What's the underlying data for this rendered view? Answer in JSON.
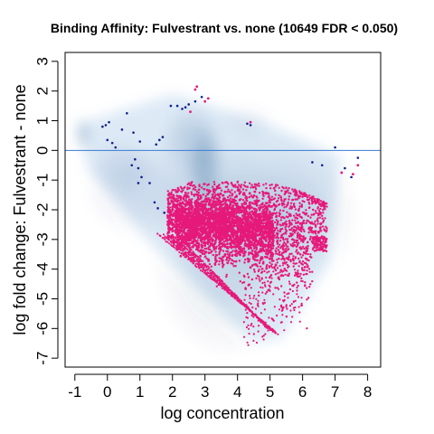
{
  "chart_data": {
    "type": "scatter",
    "title": "Binding Affinity: Fulvestrant vs. none (10649 FDR < 0.050)",
    "xlabel": "log concentration",
    "ylabel": "log fold change: Fulvestrant - none",
    "xlim": [
      -1.3,
      8.4
    ],
    "ylim": [
      -7.3,
      3.3
    ],
    "x_ticks": [
      -1,
      0,
      1,
      2,
      3,
      4,
      5,
      6,
      7,
      8
    ],
    "y_ticks": [
      -7,
      -6,
      -5,
      -4,
      -3,
      -2,
      -1,
      0,
      1,
      2,
      3
    ],
    "reference_line_y": 0,
    "significant_count": 10649,
    "fdr_threshold": 0.05,
    "colors": {
      "significant": "#e6197a",
      "nonsignificant_points": "#0f1f8c",
      "density": "#0a3d78",
      "reference_line": "#3a7bd5"
    },
    "density_regions": [
      {
        "x": -0.75,
        "y": 0.55,
        "sx": 0.1,
        "sy": 0.25,
        "weight": 1.0
      },
      {
        "x": 3.0,
        "y": -0.6,
        "sx": 0.25,
        "sy": 0.7,
        "weight": 1.0
      },
      {
        "x": 2.6,
        "y": 0.3,
        "sx": 0.45,
        "sy": 0.6,
        "weight": 0.55
      },
      {
        "x": 1.3,
        "y": -1.4,
        "sx": 0.9,
        "sy": 0.7,
        "weight": 0.3
      },
      {
        "x": 0.4,
        "y": -0.6,
        "sx": 0.5,
        "sy": 0.5,
        "weight": 0.3
      },
      {
        "x": 3.6,
        "y": -3.4,
        "sx": 1.0,
        "sy": 1.6,
        "weight": 0.35
      },
      {
        "x": 4.6,
        "y": -2.0,
        "sx": 1.3,
        "sy": 1.2,
        "weight": 0.35
      },
      {
        "x": 4.3,
        "y": 0.9,
        "sx": 0.4,
        "sy": 0.3,
        "weight": 0.2
      },
      {
        "x": 6.0,
        "y": -2.2,
        "sx": 0.8,
        "sy": 1.0,
        "weight": 0.2
      }
    ],
    "significant_series": [
      {
        "name": "main cloud",
        "x_range": [
          1.8,
          6.8
        ],
        "y_center": -2.6,
        "y_spread": 1.0,
        "density": "high"
      },
      {
        "name": "diagonal bands",
        "x_range": [
          1.5,
          5.5
        ],
        "y_range": [
          -2.8,
          -6.4
        ],
        "bands": 5
      }
    ],
    "nonsignificant_points": [
      [
        -0.15,
        0.8
      ],
      [
        -0.05,
        0.85
      ],
      [
        0.05,
        0.95
      ],
      [
        0.6,
        1.25
      ],
      [
        0.45,
        0.7
      ],
      [
        0.8,
        0.6
      ],
      [
        0.0,
        0.35
      ],
      [
        0.15,
        0.25
      ],
      [
        1.0,
        0.3
      ],
      [
        1.6,
        0.35
      ],
      [
        1.7,
        0.45
      ],
      [
        1.5,
        0.2
      ],
      [
        0.85,
        -0.3
      ],
      [
        0.95,
        -0.6
      ],
      [
        1.05,
        -0.9
      ],
      [
        0.95,
        -1.1
      ],
      [
        0.75,
        -0.5
      ],
      [
        1.3,
        -1.1
      ],
      [
        1.45,
        -1.75
      ],
      [
        1.55,
        -1.95
      ],
      [
        1.75,
        -2.1
      ],
      [
        1.95,
        1.5
      ],
      [
        2.15,
        1.5
      ],
      [
        2.3,
        1.4
      ],
      [
        2.4,
        1.45
      ],
      [
        2.5,
        1.55
      ],
      [
        2.7,
        1.65
      ],
      [
        2.9,
        1.8
      ],
      [
        4.3,
        0.9
      ],
      [
        4.4,
        0.85
      ],
      [
        6.3,
        -0.4
      ],
      [
        6.6,
        -0.5
      ],
      [
        7.0,
        0.1
      ],
      [
        7.3,
        -0.6
      ],
      [
        7.7,
        -0.25
      ],
      [
        7.5,
        -0.9
      ],
      [
        0.25,
        0.1
      ]
    ],
    "significant_outliers": [
      [
        2.7,
        2.05
      ],
      [
        2.75,
        2.15
      ],
      [
        3.0,
        1.65
      ],
      [
        3.1,
        1.75
      ],
      [
        2.55,
        1.3
      ],
      [
        4.4,
        0.95
      ],
      [
        7.2,
        -0.75
      ],
      [
        7.55,
        -0.8
      ],
      [
        7.7,
        -0.5
      ]
    ]
  }
}
